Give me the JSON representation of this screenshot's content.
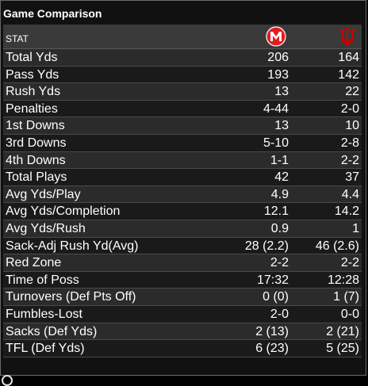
{
  "panel": {
    "title": "Game Comparison",
    "stat_header": "STAT",
    "team1_logo": "maryland-m-logo",
    "team2_logo": "indiana-iu-logo",
    "team1_color": "#e31b23",
    "team2_color": "#cc0000"
  },
  "rows": [
    {
      "label": "Total Yds",
      "team1": "206",
      "team2": "164"
    },
    {
      "label": "Pass Yds",
      "team1": "193",
      "team2": "142"
    },
    {
      "label": "Rush Yds",
      "team1": "13",
      "team2": "22"
    },
    {
      "label": "Penalties",
      "team1": "4-44",
      "team2": "2-0"
    },
    {
      "label": "1st Downs",
      "team1": "13",
      "team2": "10"
    },
    {
      "label": "3rd Downs",
      "team1": "5-10",
      "team2": "2-8"
    },
    {
      "label": "4th Downs",
      "team1": "1-1",
      "team2": "2-2"
    },
    {
      "label": "Total Plays",
      "team1": "42",
      "team2": "37"
    },
    {
      "label": "Avg Yds/Play",
      "team1": "4.9",
      "team2": "4.4"
    },
    {
      "label": "Avg Yds/Completion",
      "team1": "12.1",
      "team2": "14.2"
    },
    {
      "label": "Avg Yds/Rush",
      "team1": "0.9",
      "team2": "1"
    },
    {
      "label": "Sack-Adj Rush Yd(Avg)",
      "team1": "28 (2.2)",
      "team2": "46 (2.6)"
    },
    {
      "label": "Red Zone",
      "team1": "2-2",
      "team2": "2-2"
    },
    {
      "label": "Time of Poss",
      "team1": "17:32",
      "team2": "12:28"
    },
    {
      "label": "Turnovers (Def Pts Off)",
      "team1": "0 (0)",
      "team2": "1 (7)"
    },
    {
      "label": "Fumbles-Lost",
      "team1": "2-0",
      "team2": "0-0"
    },
    {
      "label": "Sacks (Def Yds)",
      "team1": "2 (13)",
      "team2": "2 (21)"
    },
    {
      "label": "TFL (Def Yds)",
      "team1": "6 (23)",
      "team2": "5 (25)"
    }
  ]
}
